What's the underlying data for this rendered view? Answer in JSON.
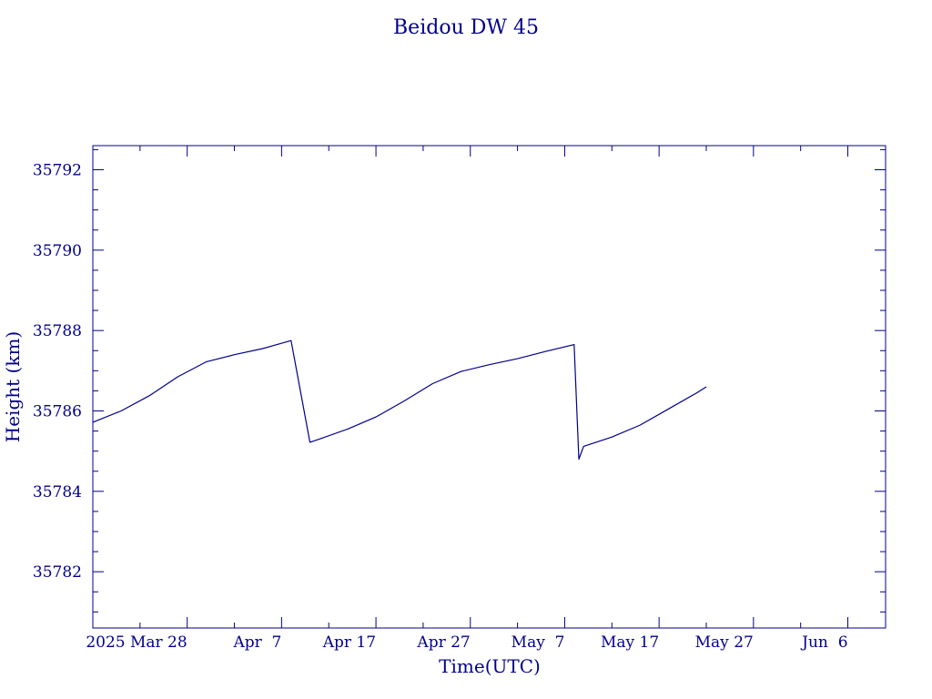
{
  "chart_data": {
    "type": "line",
    "title": "Beidou DW 45",
    "xlabel": "Time(UTC)",
    "ylabel": "Height (km)",
    "xlim": [
      "2025-03-18",
      "2025-06-10"
    ],
    "ylim": [
      35780.6,
      35792.6
    ],
    "x_ticks": [
      {
        "date": "2025-03-28",
        "label": "2025 Mar 28"
      },
      {
        "date": "2025-04-07",
        "label": "Apr  7"
      },
      {
        "date": "2025-04-17",
        "label": "Apr 17"
      },
      {
        "date": "2025-04-27",
        "label": "Apr 27"
      },
      {
        "date": "2025-05-07",
        "label": "May  7"
      },
      {
        "date": "2025-05-17",
        "label": "May 17"
      },
      {
        "date": "2025-05-27",
        "label": "May 27"
      },
      {
        "date": "2025-06-06",
        "label": "Jun  6"
      }
    ],
    "y_ticks": [
      35782,
      35784,
      35786,
      35788,
      35790,
      35792
    ],
    "grid": false,
    "color": "#00008b",
    "series": [
      {
        "x": [
          "2025-03-18",
          "2025-03-21",
          "2025-03-24",
          "2025-03-27",
          "2025-03-30",
          "2025-04-02",
          "2025-04-05",
          "2025-04-08",
          "2025-04-10",
          "2025-04-11",
          "2025-04-14",
          "2025-04-17",
          "2025-04-20",
          "2025-04-23",
          "2025-04-26",
          "2025-04-29",
          "2025-05-02",
          "2025-05-05",
          "2025-05-08",
          "2025-05-08.5",
          "2025-05-09",
          "2025-05-12",
          "2025-05-15",
          "2025-05-18",
          "2025-05-21",
          "2025-05-22"
        ],
        "y": [
          35785.72,
          35786.0,
          35786.38,
          35786.85,
          35787.22,
          35787.4,
          35787.55,
          35787.75,
          35785.22,
          35785.3,
          35785.55,
          35785.85,
          35786.25,
          35786.68,
          35786.98,
          35787.15,
          35787.3,
          35787.48,
          35787.65,
          35784.8,
          35785.12,
          35785.35,
          35785.65,
          35786.05,
          35786.45,
          35786.6
        ]
      }
    ]
  }
}
